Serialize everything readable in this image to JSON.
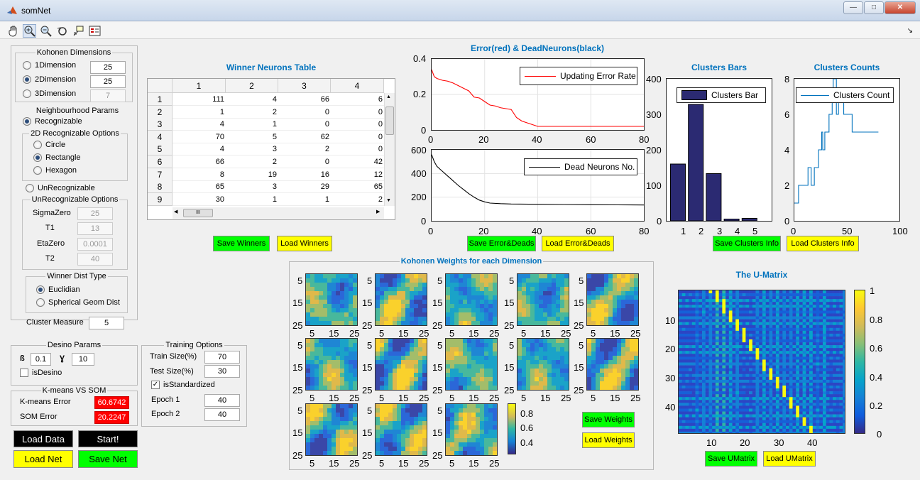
{
  "window": {
    "title": "somNet"
  },
  "kohonen": {
    "title": "Kohonen Dimensions",
    "d1": "1Dimension",
    "d2": "2Dimension",
    "d3": "3Dimension",
    "v1": "25",
    "v2": "25",
    "v3": "7"
  },
  "neigh": {
    "title": "Neighbourhood Params",
    "recog": "Recognizable",
    "opt2d": "2D Recognizable Options",
    "circle": "Circle",
    "rect": "Rectangle",
    "hex": "Hexagon",
    "unrecog": "UnRecognizable",
    "unopts": "UnRecognizable Options",
    "sigma_lbl": "SigmaZero",
    "sigma": "25",
    "t1_lbl": "T1",
    "t1": "13",
    "eta_lbl": "EtaZero",
    "eta": "0.0001",
    "t2_lbl": "T2",
    "t2": "40",
    "wd_title": "Winner Dist Type",
    "eucl": "Euclidian",
    "sph": "Spherical Geom Dist",
    "cm_lbl": "Cluster Measure",
    "cm": "5"
  },
  "desino": {
    "title": "Desino Params",
    "beta_lbl": "ß",
    "beta": "0.1",
    "gamma_lbl": "Ɣ",
    "gamma": "10",
    "is": "isDesino"
  },
  "kmeans": {
    "title": "K-means VS SOM",
    "k_lbl": "K-means Error",
    "k": "60.6742",
    "s_lbl": "SOM Error",
    "s": "20.2247"
  },
  "main_buttons": {
    "load_data": "Load Data",
    "start": "Start!",
    "load_net": "Load Net",
    "save_net": "Save Net"
  },
  "training": {
    "title": "Training Options",
    "train_lbl": "Train Size(%)",
    "train": "70",
    "test_lbl": "Test Size(%)",
    "test": "30",
    "std": "isStandardized",
    "e1_lbl": "Epoch 1",
    "e1": "40",
    "e2_lbl": "Epoch 2",
    "e2": "40"
  },
  "winner": {
    "title": "Winner Neurons Table",
    "cols": [
      "1",
      "2",
      "3",
      "4"
    ],
    "rows": [
      [
        "1",
        "111",
        "4",
        "66",
        "6"
      ],
      [
        "2",
        "1",
        "2",
        "0",
        "0"
      ],
      [
        "3",
        "4",
        "1",
        "0",
        "0"
      ],
      [
        "4",
        "70",
        "5",
        "62",
        "0"
      ],
      [
        "5",
        "4",
        "3",
        "2",
        "0"
      ],
      [
        "6",
        "66",
        "2",
        "0",
        "42"
      ],
      [
        "7",
        "8",
        "19",
        "16",
        "12"
      ],
      [
        "8",
        "65",
        "3",
        "29",
        "65"
      ],
      [
        "9",
        "30",
        "1",
        "1",
        "2"
      ]
    ],
    "save": "Save Winners",
    "load": "Load Winners",
    "scroll_grip": "III"
  },
  "error_chart": {
    "title": "Error(red) & DeadNeurons(black)",
    "legend1": "Updating Error Rate",
    "legend2": "Dead Neurons No.",
    "yt1": [
      "0.4",
      "0.2",
      "0"
    ],
    "xt": [
      "0",
      "20",
      "40",
      "60",
      "80"
    ],
    "yt2": [
      "600",
      "400",
      "200",
      "0"
    ],
    "save": "Save Error&Deads",
    "load": "Load Error&Deads"
  },
  "clusters_bars": {
    "title": "Clusters Bars",
    "legend": "Clusters Bar",
    "yt": [
      "400",
      "300",
      "200",
      "100",
      "0"
    ],
    "xt": [
      "1",
      "2",
      "3",
      "4",
      "5"
    ]
  },
  "clusters_counts": {
    "title": "Clusters Counts",
    "legend": "Clusters Count",
    "yt": [
      "8",
      "6",
      "4",
      "2",
      "0"
    ],
    "xt": [
      "0",
      "50",
      "100"
    ],
    "save": "Save Clusters Info",
    "load": "Load Clusters Info"
  },
  "weights": {
    "title": "Kohonen Weights for each Dimension",
    "yt": [
      "5",
      "15",
      "25"
    ],
    "xt": [
      "5",
      "15",
      "25"
    ],
    "cb": [
      "0.8",
      "0.6",
      "0.4"
    ],
    "save": "Save Weights",
    "load": "Load Weights"
  },
  "umatrix": {
    "title": "The U-Matrix",
    "yt": [
      "10",
      "20",
      "30",
      "40"
    ],
    "xt": [
      "10",
      "20",
      "30",
      "40"
    ],
    "cb": [
      "1",
      "0.8",
      "0.6",
      "0.4",
      "0.2",
      "0"
    ],
    "save": "Save UMatrix",
    "load": "Load UMatrix"
  },
  "colors": {
    "bar": "#2b2a72",
    "line": "#0072bd",
    "error": "#ff0000",
    "title": "#0072bd",
    "green": "#00ff00",
    "yellow": "#ffff00"
  },
  "chart_data": [
    {
      "type": "line",
      "title": "Error(red) & DeadNeurons(black)",
      "series": [
        {
          "name": "Updating Error Rate",
          "x": [
            0,
            1,
            2,
            4,
            6,
            8,
            10,
            12,
            14,
            16,
            18,
            20,
            22,
            24,
            26,
            28,
            30,
            32,
            34,
            36,
            38,
            40,
            42,
            50,
            60,
            70,
            80
          ],
          "y": [
            0.34,
            0.3,
            0.29,
            0.28,
            0.275,
            0.265,
            0.25,
            0.235,
            0.22,
            0.185,
            0.18,
            0.16,
            0.14,
            0.135,
            0.125,
            0.12,
            0.115,
            0.07,
            0.05,
            0.04,
            0.03,
            0.02,
            0.02,
            0.02,
            0.02,
            0.02,
            0.02
          ]
        }
      ],
      "xlim": [
        0,
        80
      ],
      "ylim": [
        0,
        0.4
      ]
    },
    {
      "type": "line",
      "series": [
        {
          "name": "Dead Neurons No.",
          "x": [
            0,
            1,
            2,
            4,
            6,
            8,
            10,
            12,
            14,
            16,
            18,
            20,
            22,
            26,
            30,
            40,
            50,
            60,
            70,
            80
          ],
          "y": [
            560,
            500,
            460,
            420,
            380,
            340,
            300,
            265,
            230,
            200,
            175,
            160,
            150,
            145,
            142,
            140,
            138,
            136,
            135,
            134
          ]
        }
      ],
      "xlim": [
        0,
        80
      ],
      "ylim": [
        0,
        600
      ]
    },
    {
      "type": "bar",
      "title": "Clusters Bars",
      "categories": [
        "1",
        "2",
        "3",
        "4",
        "5"
      ],
      "series": [
        {
          "name": "Clusters Bar",
          "values": [
            160,
            328,
            133,
            5,
            7
          ]
        }
      ],
      "ylim": [
        0,
        400
      ]
    },
    {
      "type": "line",
      "title": "Clusters Counts",
      "series": [
        {
          "name": "Clusters Count",
          "x": [
            0,
            3,
            4,
            8,
            9,
            12,
            13,
            15,
            16,
            18,
            19,
            22,
            23,
            24,
            26,
            27,
            29,
            31,
            33,
            34,
            36,
            37,
            40,
            42,
            47,
            50,
            55,
            60,
            70,
            80
          ],
          "y": [
            1,
            1,
            2,
            2,
            2,
            2,
            3,
            3,
            2,
            2,
            3,
            3,
            4,
            4,
            5,
            4,
            5,
            5,
            6,
            6,
            7,
            8,
            6,
            7,
            6,
            6,
            5,
            5,
            5,
            5
          ]
        }
      ],
      "xlim": [
        0,
        100
      ],
      "ylim": [
        0,
        8
      ]
    }
  ]
}
